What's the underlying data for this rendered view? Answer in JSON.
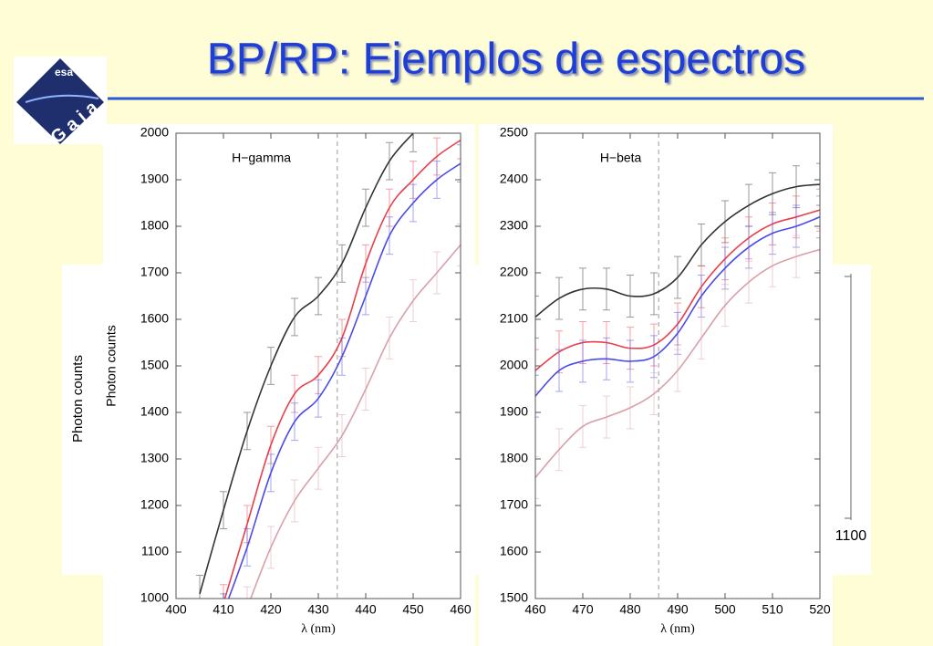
{
  "slide": {
    "title": "BP/RP: Ejemplos de espectros",
    "logo_text": [
      "esa",
      "G a i a"
    ],
    "background_label": "Photon counts",
    "background_tick": "1100"
  },
  "chart_data": [
    {
      "type": "line",
      "title": "H−gamma",
      "x_label": "λ (nm)",
      "y_label": "Photon counts",
      "x": [
        405,
        410,
        415,
        420,
        425,
        430,
        435,
        440,
        445,
        450,
        455,
        460
      ],
      "xlim": [
        400,
        460
      ],
      "xticks": [
        400,
        410,
        420,
        430,
        440,
        450,
        460
      ],
      "ylim": [
        1000,
        2000
      ],
      "yticks": [
        1000,
        1100,
        1200,
        1300,
        1400,
        1500,
        1600,
        1700,
        1800,
        1900,
        2000
      ],
      "reference_x": 434,
      "series": [
        {
          "color": "#333333",
          "error": 40,
          "values": [
            1010,
            1190,
            1360,
            1500,
            1605,
            1650,
            1720,
            1840,
            1940,
            2000,
            null,
            null
          ]
        },
        {
          "color": "#e8404a",
          "error": 40,
          "values": [
            null,
            990,
            1160,
            1330,
            1440,
            1480,
            1560,
            1720,
            1840,
            1900,
            1950,
            1985
          ]
        },
        {
          "color": "#4a4ae8",
          "error": 40,
          "values": [
            null,
            970,
            1110,
            1270,
            1380,
            1430,
            1520,
            1650,
            1780,
            1850,
            1900,
            1935
          ]
        },
        {
          "color": "#d8a0a8",
          "error": 45,
          "values": [
            null,
            null,
            980,
            1110,
            1210,
            1280,
            1350,
            1450,
            1560,
            1640,
            1700,
            1760
          ]
        }
      ]
    },
    {
      "type": "line",
      "title": "H−beta",
      "x_label": "λ (nm)",
      "x": [
        460,
        465,
        470,
        475,
        480,
        485,
        490,
        495,
        500,
        505,
        510,
        515,
        520
      ],
      "xlim": [
        460,
        520
      ],
      "xticks": [
        460,
        470,
        480,
        490,
        500,
        510,
        520
      ],
      "ylim": [
        1500,
        2500
      ],
      "yticks": [
        1500,
        1600,
        1700,
        1800,
        1900,
        2000,
        2100,
        2200,
        2300,
        2400,
        2500
      ],
      "reference_x": 486,
      "series": [
        {
          "color": "#333333",
          "error": 45,
          "values": [
            2105,
            2145,
            2165,
            2165,
            2150,
            2155,
            2190,
            2260,
            2310,
            2345,
            2370,
            2385,
            2390
          ]
        },
        {
          "color": "#e8404a",
          "error": 45,
          "values": [
            1990,
            2030,
            2050,
            2050,
            2038,
            2045,
            2090,
            2170,
            2230,
            2275,
            2305,
            2320,
            2335
          ]
        },
        {
          "color": "#4a4ae8",
          "error": 45,
          "values": [
            1935,
            1990,
            2010,
            2015,
            2010,
            2020,
            2070,
            2150,
            2210,
            2255,
            2285,
            2300,
            2320
          ]
        },
        {
          "color": "#d8a0a8",
          "error": 45,
          "values": [
            1760,
            1820,
            1870,
            1890,
            1910,
            1940,
            1990,
            2060,
            2130,
            2180,
            2215,
            2235,
            2250
          ]
        }
      ]
    }
  ]
}
